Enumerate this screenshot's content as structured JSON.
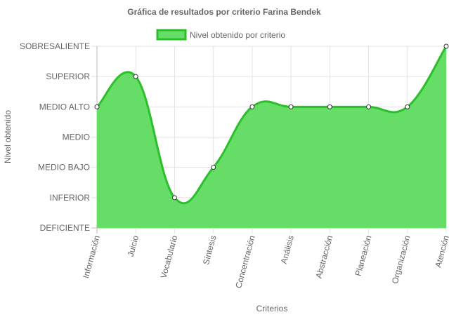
{
  "chart_data": {
    "type": "area",
    "title": "Gráfica de resultados por criterio Farina Bendek",
    "xlabel": "Criterios",
    "ylabel": "Nivel obtenido",
    "legend": {
      "position": "top"
    },
    "grid": true,
    "y_levels": [
      "DEFICIENTE",
      "INFERIOR",
      "MEDIO BAJO",
      "MEDIO",
      "MEDIO ALTO",
      "SUPERIOR",
      "SOBRESALIENTE"
    ],
    "ylim": [
      0,
      6
    ],
    "categories": [
      "Información",
      "Juicio",
      "Vocabulario",
      "Síntesis",
      "Concentración",
      "Análisis",
      "Abstracción",
      "Planeación",
      "Organización",
      "Atención"
    ],
    "series": [
      {
        "name": "Nivel obtenido por criterio",
        "values": [
          4,
          5,
          1,
          2,
          4,
          4,
          4,
          4,
          4,
          6
        ],
        "fill_color": "#66dd66",
        "line_color": "#2bbf2b"
      }
    ]
  }
}
